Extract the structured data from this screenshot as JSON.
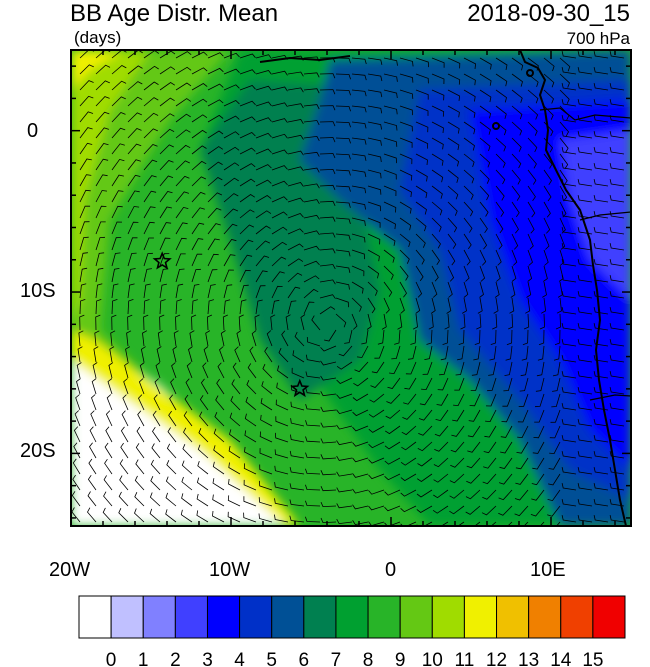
{
  "header": {
    "title": "BB Age Distr. Mean",
    "datetime": "2018-09-30_15",
    "units": "(days)",
    "level": "700 hPa"
  },
  "map": {
    "lon_range": [
      -20,
      15
    ],
    "lat_range": [
      -24.5,
      5
    ],
    "lon_tick_labels": [
      "20W",
      "10W",
      "0",
      "10E"
    ],
    "lat_tick_labels": [
      "0",
      "10S",
      "20S"
    ],
    "markers": [
      {
        "name": "star-marker-1",
        "lon": -14.3,
        "lat": -8.1
      },
      {
        "name": "star-marker-2",
        "lon": -5.7,
        "lat": -16.0
      }
    ]
  },
  "colorbar": {
    "labels": [
      "0",
      "1",
      "2",
      "3",
      "4",
      "5",
      "6",
      "7",
      "8",
      "9",
      "10",
      "11",
      "12",
      "13",
      "14",
      "15"
    ],
    "colors": [
      "#ffffff",
      "#c0c0ff",
      "#8080ff",
      "#4040ff",
      "#0000ff",
      "#0030c8",
      "#005096",
      "#008050",
      "#00a030",
      "#28b428",
      "#64c814",
      "#a0dc00",
      "#f0f000",
      "#f0c000",
      "#f08000",
      "#f04000",
      "#f00000"
    ]
  },
  "colors": {
    "ocean_far": "#28b428",
    "ocean_mid": "#00a030",
    "plume_core": "#008050",
    "plume_blue": "#0030c8",
    "land_blue": "#0000ff",
    "fresh": "#ffffff",
    "yellow": "#f0f000"
  }
}
